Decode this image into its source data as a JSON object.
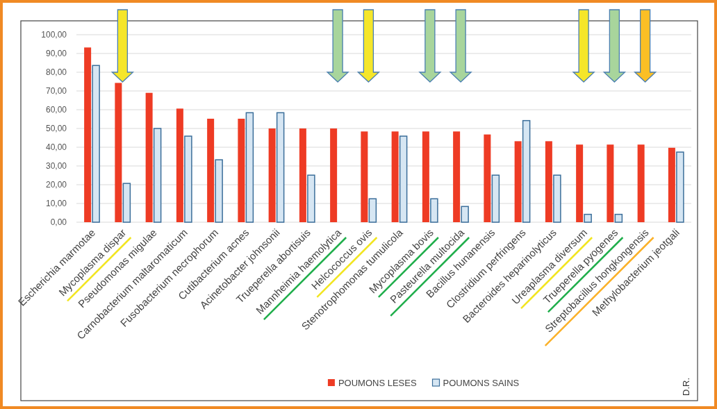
{
  "chart_data": {
    "type": "bar",
    "categories": [
      "Escherichia marmotae",
      "Mycoplasma dispar",
      "Pseudomonas migulae",
      "Carnobacterium maltaromaticum",
      "Fusobacterium necrophorum",
      "Cutibacterium acnes",
      "Acinetobacter johnsonii",
      "Trueperella abortisuis",
      "Mannheimia haemolytica",
      "Helcococcus ovis",
      "Stenotrophomonas tumulicola",
      "Mycoplasma bovis",
      "Pasteurella multocida",
      "Bacillus hunanensis",
      "Clostridium perfringens",
      "Bacteroides heparinolyticus",
      "Ureaplasma diversum",
      "Trueperella pyogenes",
      "Streptobacillus hongkongensis",
      "Methylobacterium jeotgali"
    ],
    "series": [
      {
        "name": "POUMONS LESES",
        "color": "#ee3b24",
        "values": [
          93.2,
          74.3,
          69.0,
          60.6,
          55.2,
          55.2,
          50.0,
          50.0,
          50.0,
          48.4,
          48.4,
          48.4,
          48.4,
          46.8,
          43.2,
          43.2,
          41.4,
          41.4,
          41.4,
          39.7
        ]
      },
      {
        "name": "POUMONS SAINS",
        "color": "#d6e6f3",
        "values": [
          83.6,
          20.7,
          50.0,
          45.9,
          33.3,
          58.4,
          58.4,
          25.1,
          null,
          12.5,
          45.9,
          12.5,
          8.4,
          25.1,
          54.2,
          25.1,
          4.2,
          4.2,
          null,
          37.4
        ]
      }
    ],
    "ylim": [
      0,
      100
    ],
    "yticks": [
      {
        "value": 0,
        "label": "0,00"
      },
      {
        "value": 10,
        "label": "10,00"
      },
      {
        "value": 20,
        "label": "20,00"
      },
      {
        "value": 30,
        "label": "30,00"
      },
      {
        "value": 40,
        "label": "40,00"
      },
      {
        "value": 50,
        "label": "50,00"
      },
      {
        "value": 60,
        "label": "60,00"
      },
      {
        "value": 70,
        "label": "70,00"
      },
      {
        "value": 80,
        "label": "80,00"
      },
      {
        "value": 90,
        "label": "90,00"
      },
      {
        "value": 100,
        "label": "100,00"
      }
    ],
    "grid": "y",
    "legend": "bottom",
    "annotations": [
      "D.R."
    ]
  }
}
